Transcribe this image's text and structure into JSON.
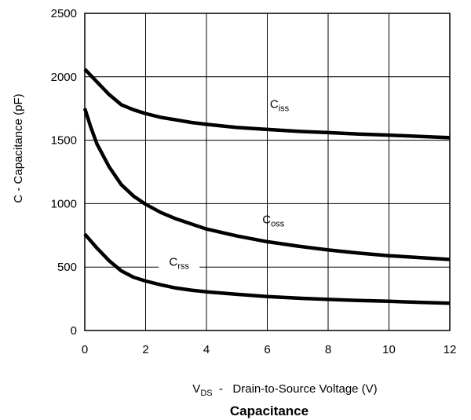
{
  "chart_data": {
    "type": "line",
    "title": "Capacitance",
    "xlabel": {
      "main": "V",
      "sub": "DS",
      "rest": "  -   Drain-to-Source Voltage (V)"
    },
    "ylabel": "C  -  Capacitance (pF)",
    "xlim": [
      0,
      12
    ],
    "ylim": [
      0,
      2500
    ],
    "x_ticks": [
      0,
      2,
      4,
      6,
      8,
      10,
      12
    ],
    "y_ticks": [
      0,
      500,
      1000,
      1500,
      2000,
      2500
    ],
    "grid": true,
    "series": [
      {
        "name": "C_iss",
        "label_main": "C",
        "label_sub": "iss",
        "x": [
          0,
          0.4,
          0.8,
          1.2,
          1.6,
          2,
          2.5,
          3,
          3.5,
          4,
          5,
          6,
          7,
          8,
          9,
          10,
          11,
          12
        ],
        "y": [
          2060,
          1960,
          1860,
          1780,
          1740,
          1710,
          1680,
          1660,
          1640,
          1625,
          1600,
          1585,
          1570,
          1560,
          1548,
          1540,
          1530,
          1520
        ]
      },
      {
        "name": "C_oss",
        "label_main": "C",
        "label_sub": "oss",
        "x": [
          0,
          0.2,
          0.4,
          0.8,
          1.2,
          1.6,
          2,
          2.5,
          3,
          3.5,
          4,
          5,
          6,
          7,
          8,
          9,
          10,
          11,
          12
        ],
        "y": [
          1750,
          1600,
          1470,
          1290,
          1150,
          1060,
          995,
          930,
          880,
          840,
          800,
          745,
          700,
          665,
          635,
          610,
          590,
          575,
          560
        ]
      },
      {
        "name": "C_rss",
        "label_main": "C",
        "label_sub": "rss",
        "x": [
          0,
          0.4,
          0.8,
          1.2,
          1.6,
          2,
          2.5,
          3,
          3.5,
          4,
          5,
          6,
          7,
          8,
          9,
          10,
          11,
          12
        ],
        "y": [
          760,
          650,
          550,
          470,
          420,
          390,
          360,
          335,
          318,
          305,
          285,
          268,
          255,
          245,
          237,
          230,
          222,
          215
        ]
      }
    ]
  }
}
